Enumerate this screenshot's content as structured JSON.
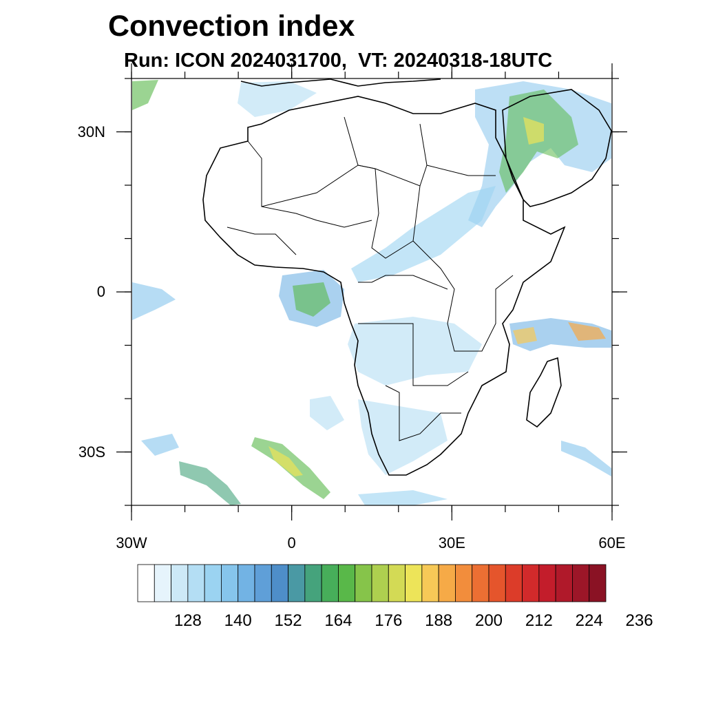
{
  "title": "Convection index",
  "subtitle": "Run: ICON 2024031700,  VT: 20240318-18UTC",
  "map": {
    "lon_range": [
      -30,
      60
    ],
    "lat_range": [
      -40,
      40
    ],
    "y_ticks": [
      {
        "lat": 30,
        "label": "30N"
      },
      {
        "lat": 0,
        "label": "0"
      },
      {
        "lat": -30,
        "label": "30S"
      }
    ],
    "x_ticks": [
      {
        "lon": -30,
        "label": "30W"
      },
      {
        "lon": 0,
        "label": "0"
      },
      {
        "lon": 30,
        "label": "30E"
      },
      {
        "lon": 60,
        "label": "60E"
      }
    ],
    "minor_tick_step": 10
  },
  "colorbar": {
    "colors": [
      "#ffffff",
      "#e6f4fc",
      "#cde9f7",
      "#b4def4",
      "#9bd3f1",
      "#86c5ec",
      "#72b3e4",
      "#5f9fd8",
      "#4e8ec9",
      "#4a99a4",
      "#45a37c",
      "#47ae5a",
      "#59b849",
      "#86c44a",
      "#aecf4f",
      "#d3da55",
      "#ede459",
      "#f7c957",
      "#f6aa47",
      "#f28d3c",
      "#ec6f33",
      "#e5552c",
      "#dc3c29",
      "#d22a2b",
      "#c31d2b",
      "#b0192a",
      "#9c1628",
      "#8a1224"
    ],
    "labels": [
      "128",
      "140",
      "152",
      "164",
      "176",
      "188",
      "200",
      "212",
      "224",
      "236"
    ]
  }
}
